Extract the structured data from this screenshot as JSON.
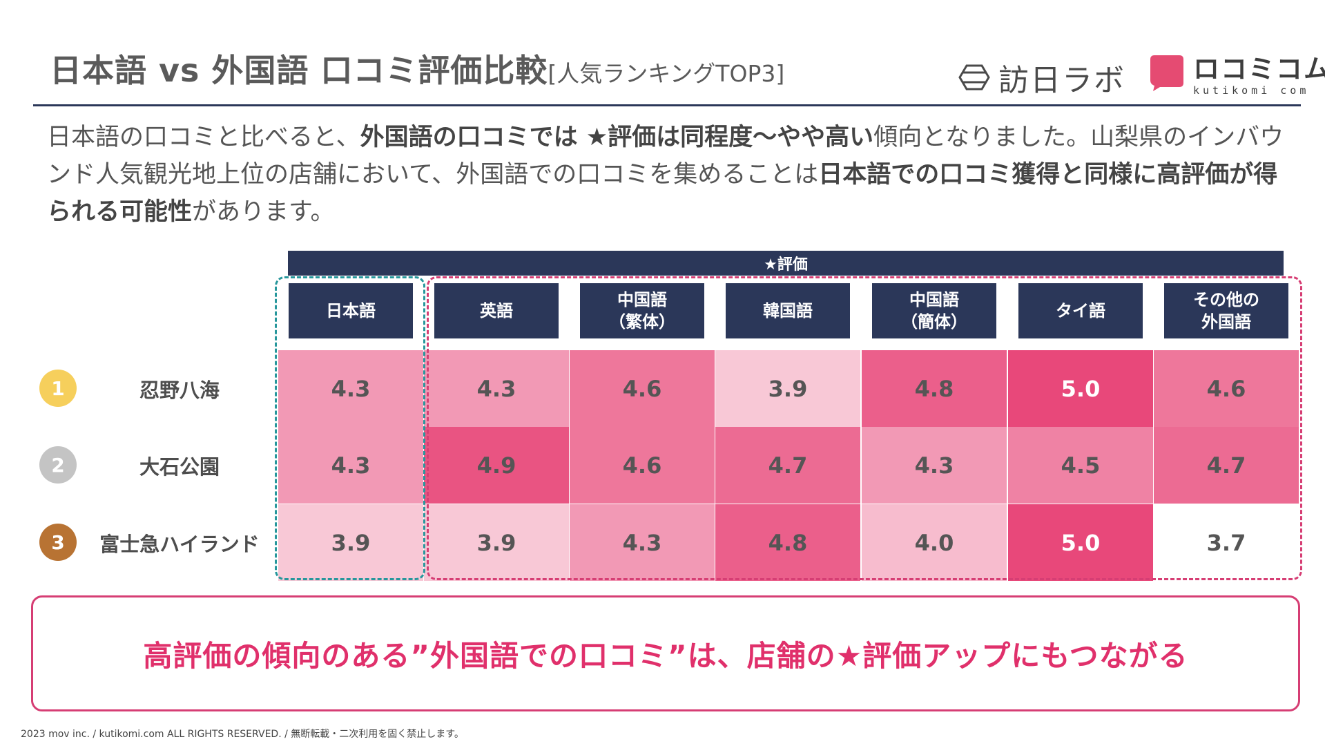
{
  "header": {
    "title": "日本語 vs 外国語 口コミ評価比較",
    "subtitle": "[人気ランキングTOP3]",
    "logo_houniti": "訪日ラボ",
    "logo_kutikomi": "ロコミコム",
    "logo_kutikomi_url": "kutikomi com"
  },
  "description": {
    "p1": "日本語の口コミと比べると、",
    "b1": "外国語の口コミでは ★評価は同程度〜やや高い",
    "p2": "傾向となりました。山梨県のインバウンド人気観光地上位の店舗において、外国語での口コミを集めることは",
    "b2": "日本語での口コミ獲得と同様に高評価が得られる可能性",
    "p3": "があります。"
  },
  "table": {
    "band_label": "★評価",
    "columns": [
      "日本語",
      "英語",
      "中国語\n（繁体）",
      "韓国語",
      "中国語\n（簡体）",
      "タイ語",
      "その他の\n外国語"
    ],
    "rows": [
      {
        "rank": "1",
        "name": "忍野八海",
        "values": [
          "4.3",
          "4.3",
          "4.6",
          "3.9",
          "4.8",
          "5.0",
          "4.6"
        ]
      },
      {
        "rank": "2",
        "name": "大石公園",
        "values": [
          "4.3",
          "4.9",
          "4.6",
          "4.7",
          "4.3",
          "4.5",
          "4.7"
        ]
      },
      {
        "rank": "3",
        "name": "富士急ハイランド",
        "values": [
          "3.9",
          "3.9",
          "4.3",
          "4.8",
          "4.0",
          "5.0",
          "3.7"
        ]
      }
    ],
    "rank_colors": [
      "#f6cf5c",
      "#c4c4c4",
      "#b87333"
    ]
  },
  "callout": "高評価の傾向のある”外国語での口コミ”は、店舗の★評価アップにもつながる",
  "footer": "2023 mov inc. / kutikomi.com ALL RIGHTS RESERVED. / 無断転載・二次利用を固く禁止します。"
}
